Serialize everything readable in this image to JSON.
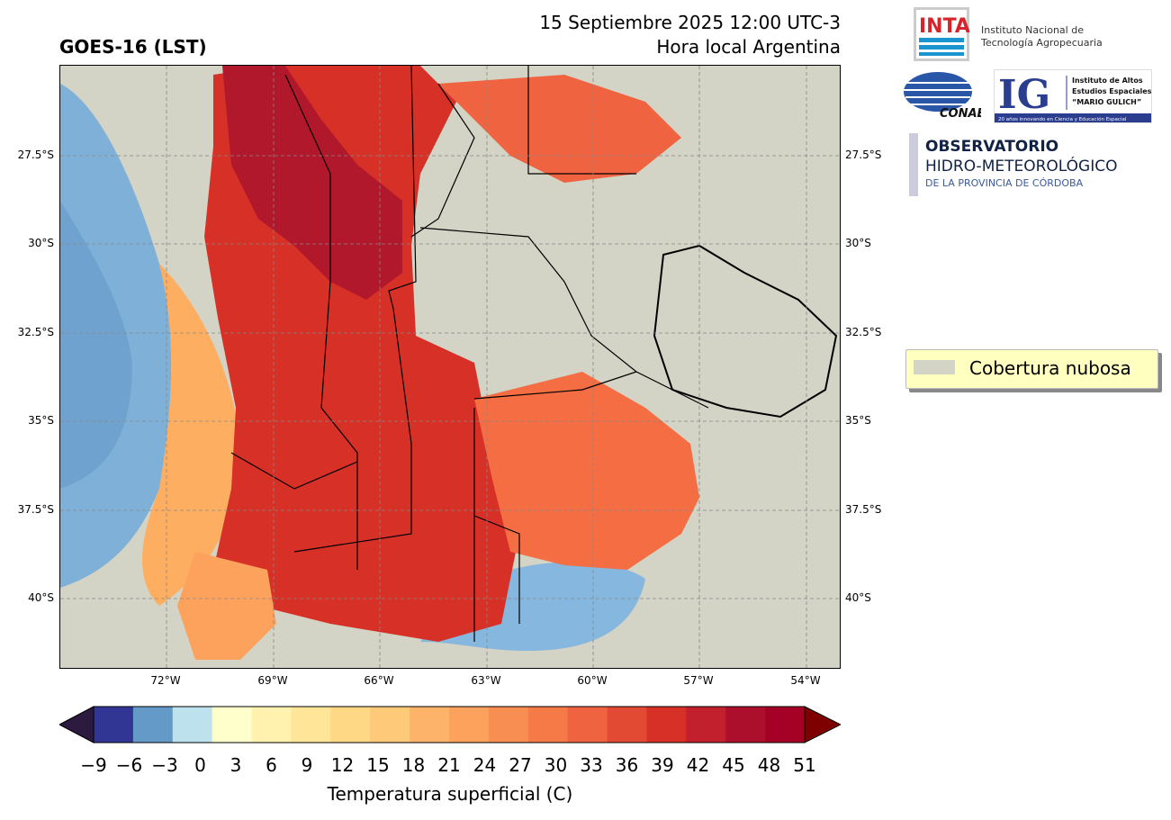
{
  "header": {
    "title_left": "GOES-16 (LST)",
    "datetime": "15 Septiembre 2025 12:00 UTC-3",
    "subtitle": "Hora local Argentina"
  },
  "map": {
    "lat_labels": [
      "27.5°S",
      "30°S",
      "32.5°S",
      "35°S",
      "37.5°S",
      "40°S"
    ],
    "lon_labels": [
      "72°W",
      "69°W",
      "66°W",
      "63°W",
      "60°W",
      "57°W",
      "54°W"
    ],
    "colors": {
      "cloud": "#d3d3c6",
      "ocean_cold": "#7fb0d8",
      "hot": "#d73027",
      "veryhot": "#b2182b",
      "mild": "#f46d43",
      "warm": "#fdae61"
    }
  },
  "legend": {
    "label": "Cobertura nubosa",
    "swatch_color": "#d3d3c6"
  },
  "colorbar": {
    "ticks": [
      "−9",
      "−6",
      "−3",
      "0",
      "3",
      "6",
      "9",
      "12",
      "15",
      "18",
      "21",
      "24",
      "27",
      "30",
      "33",
      "36",
      "39",
      "42",
      "45",
      "48",
      "51"
    ],
    "colors": [
      "#313695",
      "#649ac8",
      "#bde2ee",
      "#ffffcc",
      "#fff2ae",
      "#fee598",
      "#fed884",
      "#fec979",
      "#fdb46a",
      "#fca25d",
      "#f98e52",
      "#f57a48",
      "#ef6340",
      "#e34a33",
      "#d73027",
      "#c2202d",
      "#ab0f2b",
      "#a50026"
    ],
    "under_color": "#2d1a3f",
    "over_color": "#7f0000",
    "label": "Temperatura superficial (C)"
  },
  "logos": {
    "inta_lines": [
      "Instituto Nacional de",
      "Tecnología Agropecuaria"
    ],
    "inta_mark": "INTA",
    "conae": "CONAE",
    "ig_mark": "IG",
    "ig_lines": [
      "Instituto de Altos",
      "Estudios Espaciales",
      "“MARIO GULICH”"
    ],
    "ig_footer": "20 años innovando en Ciencia y Educación Espacial",
    "obs_line1": "OBSERVATORIO",
    "obs_line2": "HIDRO-METEOROLÓGICO",
    "obs_line3": "DE LA PROVINCIA DE CÓRDOBA"
  }
}
